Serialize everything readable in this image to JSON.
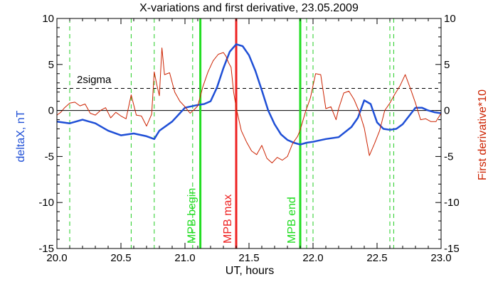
{
  "chart_data": {
    "type": "line",
    "title": "X-variations and first derivative, 23.05.2009",
    "xlabel": "UT, hours",
    "ylabel_left": "deltaX, nT",
    "ylabel_right": "First derivative*10",
    "xlim": [
      20.0,
      23.0
    ],
    "ylim_left": [
      -15,
      10
    ],
    "ylim_right": [
      -15,
      10
    ],
    "x_ticks": [
      "20.0",
      "20.5",
      "21.0",
      "21.5",
      "22.0",
      "22.5",
      "23.0"
    ],
    "y_ticks": [
      "10",
      "5",
      "0",
      "-5",
      "-10",
      "-15"
    ],
    "colors": {
      "deltaX": "#1f4fd6",
      "derivative": "#cc2200",
      "mpb_edges": "#22dd22",
      "mpb_max": "#ee2222",
      "dashed_green": "#22cc22",
      "axes": "#000000"
    },
    "threshold": {
      "label": "2sigma",
      "value": 2.4
    },
    "zero_line": 0,
    "vertical_markers": [
      {
        "x": 21.12,
        "label": "MPB begin",
        "color": "#22dd22",
        "style": "solid"
      },
      {
        "x": 21.4,
        "label": "MPB max",
        "color": "#ee2222",
        "style": "solid"
      },
      {
        "x": 21.9,
        "label": "MPB end",
        "color": "#22dd22",
        "style": "solid"
      }
    ],
    "dashed_markers": [
      20.1,
      20.58,
      20.76,
      21.06,
      21.95,
      22.0,
      22.6,
      22.63
    ],
    "series": [
      {
        "name": "deltaX",
        "color": "#1f4fd6",
        "axis": "left",
        "x": [
          20.0,
          20.1,
          20.2,
          20.3,
          20.4,
          20.5,
          20.6,
          20.7,
          20.76,
          20.8,
          20.9,
          21.0,
          21.1,
          21.15,
          21.2,
          21.25,
          21.3,
          21.35,
          21.4,
          21.45,
          21.5,
          21.55,
          21.6,
          21.65,
          21.7,
          21.75,
          21.8,
          21.85,
          21.9,
          21.95,
          22.0,
          22.1,
          22.2,
          22.3,
          22.35,
          22.4,
          22.45,
          22.5,
          22.55,
          22.6,
          22.65,
          22.7,
          22.75,
          22.8,
          22.85,
          22.9,
          22.95,
          23.0
        ],
        "values": [
          -1.2,
          -1.4,
          -1.0,
          -1.4,
          -2.2,
          -2.7,
          -2.5,
          -2.8,
          -3.1,
          -2.2,
          -1.2,
          0.3,
          0.6,
          0.7,
          1.0,
          2.5,
          4.6,
          6.4,
          7.2,
          7.0,
          6.0,
          4.3,
          2.2,
          0.0,
          -1.5,
          -2.6,
          -3.2,
          -3.5,
          -3.7,
          -3.5,
          -3.4,
          -3.1,
          -2.9,
          -1.8,
          -0.8,
          1.1,
          0.7,
          -1.3,
          -2.0,
          -2.1,
          -2.0,
          -1.5,
          -0.6,
          0.3,
          0.3,
          0.0,
          -0.2,
          -0.3
        ]
      },
      {
        "name": "First derivative*10",
        "color": "#cc2200",
        "axis": "right",
        "x": [
          20.0,
          20.03,
          20.06,
          20.1,
          20.14,
          20.18,
          20.22,
          20.26,
          20.3,
          20.34,
          20.38,
          20.42,
          20.46,
          20.5,
          20.54,
          20.58,
          20.62,
          20.66,
          20.7,
          20.74,
          20.76,
          20.78,
          20.8,
          20.82,
          20.84,
          20.88,
          20.92,
          20.96,
          21.0,
          21.04,
          21.08,
          21.1,
          21.14,
          21.18,
          21.22,
          21.26,
          21.3,
          21.32,
          21.34,
          21.36,
          21.38,
          21.4,
          21.44,
          21.48,
          21.52,
          21.56,
          21.6,
          21.64,
          21.68,
          21.72,
          21.76,
          21.8,
          21.84,
          21.88,
          21.9,
          21.94,
          21.98,
          22.02,
          22.06,
          22.1,
          22.14,
          22.18,
          22.2,
          22.24,
          22.28,
          22.32,
          22.36,
          22.4,
          22.44,
          22.48,
          22.52,
          22.56,
          22.6,
          22.64,
          22.68,
          22.72,
          22.76,
          22.8,
          22.84,
          22.88,
          22.92,
          22.96,
          23.0
        ],
        "values": [
          -0.5,
          -0.2,
          0.3,
          0.8,
          0.9,
          0.5,
          0.7,
          -0.3,
          -0.5,
          0.0,
          0.3,
          -0.8,
          -0.2,
          -0.6,
          -0.9,
          1.7,
          -0.5,
          -0.6,
          -1.7,
          -0.4,
          4.2,
          2.8,
          1.6,
          6.8,
          3.9,
          4.1,
          2.0,
          1.0,
          0.4,
          -0.3,
          0.2,
          0.5,
          2.6,
          4.2,
          5.4,
          6.1,
          6.3,
          5.9,
          5.2,
          4.7,
          2.0,
          0.3,
          -2.2,
          -3.4,
          -4.4,
          -4.8,
          -3.8,
          -5.2,
          -5.7,
          -5.1,
          -5.4,
          -5.0,
          -3.6,
          -2.8,
          -2.1,
          -0.2,
          1.4,
          4.0,
          3.9,
          0.2,
          0.4,
          -1.0,
          0.2,
          1.9,
          2.1,
          1.2,
          -0.1,
          -1.9,
          -4.9,
          -3.6,
          -2.2,
          0.0,
          0.8,
          1.8,
          2.7,
          3.9,
          2.4,
          0.8,
          -1.0,
          -0.9,
          -1.2,
          -1.2,
          -0.3
        ]
      }
    ]
  }
}
